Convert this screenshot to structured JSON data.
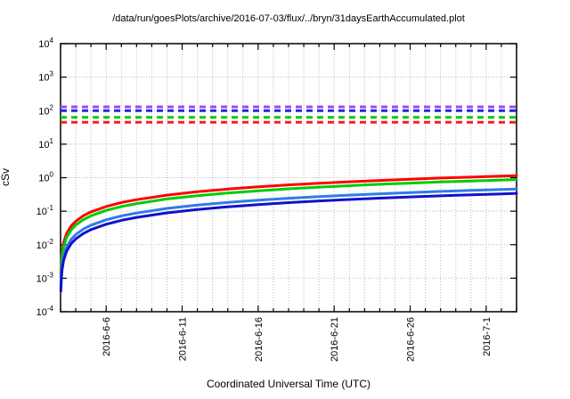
{
  "chart_data": {
    "type": "line",
    "title": "/data/run/goesPlots/archive/2016-07-03/flux/../bryn/31daysEarthAccumulated.plot",
    "xlabel": "Coordinated Universal Time (UTC)",
    "ylabel": "cSv",
    "y_scale": "log",
    "ylim": [
      0.0001,
      10000
    ],
    "y_tick_exponents": [
      4,
      3,
      2,
      1,
      0,
      -1,
      -2,
      -3,
      -4
    ],
    "x_start_date": "2016-6-3",
    "x_days_total": 30,
    "x_tick_labels": [
      {
        "label": "2016-6-6",
        "day": 3
      },
      {
        "label": "2016-6-11",
        "day": 8
      },
      {
        "label": "2016-6-16",
        "day": 13
      },
      {
        "label": "2016-6-21",
        "day": 18
      },
      {
        "label": "2016-6-26",
        "day": 23
      },
      {
        "label": "2016-7-1",
        "day": 28
      }
    ],
    "grid": {
      "vertical_every_days": 1,
      "horizontal_every_decade": true,
      "style": "dotted",
      "color": "#bbbbbb"
    },
    "legend": "none",
    "x_days": [
      0.02,
      0.05,
      0.1,
      0.2,
      0.4,
      0.7,
      1,
      1.5,
      2,
      3,
      4,
      5,
      7,
      9,
      11,
      13,
      15,
      17,
      19,
      21,
      23,
      25,
      27,
      29,
      30
    ],
    "series": [
      {
        "name": "accumulated-red",
        "color": "#ff0000",
        "style": "solid",
        "values": [
          0.0014,
          0.0032,
          0.0061,
          0.0115,
          0.0216,
          0.0362,
          0.0503,
          0.0731,
          0.0953,
          0.138,
          0.181,
          0.221,
          0.301,
          0.38,
          0.457,
          0.532,
          0.608,
          0.682,
          0.756,
          0.828,
          0.9,
          0.973,
          1.04,
          1.11,
          1.15
        ]
      },
      {
        "name": "accumulated-green",
        "color": "#00cc00",
        "style": "solid",
        "values": [
          0.0011,
          0.0024,
          0.0046,
          0.0088,
          0.0165,
          0.0277,
          0.0385,
          0.056,
          0.073,
          0.106,
          0.138,
          0.169,
          0.231,
          0.29,
          0.349,
          0.407,
          0.466,
          0.522,
          0.578,
          0.634,
          0.689,
          0.744,
          0.799,
          0.853,
          0.88
        ]
      },
      {
        "name": "accumulated-lightblue",
        "color": "#2e7ce8",
        "style": "solid",
        "values": [
          0.00055,
          0.0013,
          0.0024,
          0.0046,
          0.0086,
          0.0145,
          0.0201,
          0.0293,
          0.0381,
          0.0552,
          0.0722,
          0.0883,
          0.121,
          0.152,
          0.183,
          0.213,
          0.243,
          0.273,
          0.302,
          0.331,
          0.36,
          0.389,
          0.418,
          0.446,
          0.46
        ]
      },
      {
        "name": "accumulated-darkblue",
        "color": "#1111cc",
        "style": "solid",
        "values": [
          0.00041,
          0.00095,
          0.0018,
          0.0034,
          0.0064,
          0.0107,
          0.0149,
          0.0216,
          0.0282,
          0.0408,
          0.0534,
          0.0653,
          0.0891,
          0.112,
          0.135,
          0.157,
          0.18,
          0.202,
          0.223,
          0.245,
          0.266,
          0.287,
          0.309,
          0.329,
          0.34
        ]
      }
    ],
    "threshold_lines": [
      {
        "name": "limit-violet",
        "color": "#aa44ee",
        "style": "dashed",
        "value": 130
      },
      {
        "name": "limit-blue",
        "color": "#2222ee",
        "style": "dashed",
        "value": 100
      },
      {
        "name": "limit-green",
        "color": "#00cc00",
        "style": "dashed",
        "value": 63
      },
      {
        "name": "limit-red",
        "color": "#ee2222",
        "style": "dashed",
        "value": 45
      }
    ]
  }
}
